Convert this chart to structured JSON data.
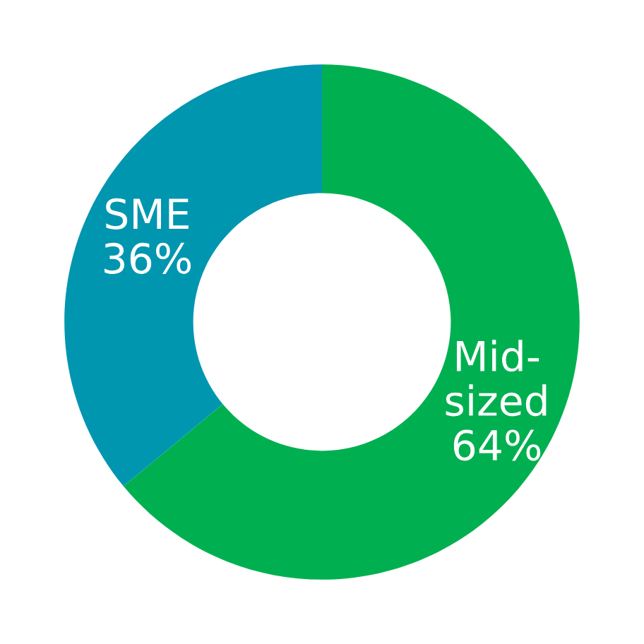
{
  "chart_data": {
    "type": "donut",
    "categories": [
      "Mid-\nsized",
      "SME"
    ],
    "values": [
      64,
      36
    ],
    "colors": [
      "#00b050",
      "#0096b0"
    ],
    "value_labels": [
      "64%",
      "36%"
    ],
    "legend": false
  }
}
